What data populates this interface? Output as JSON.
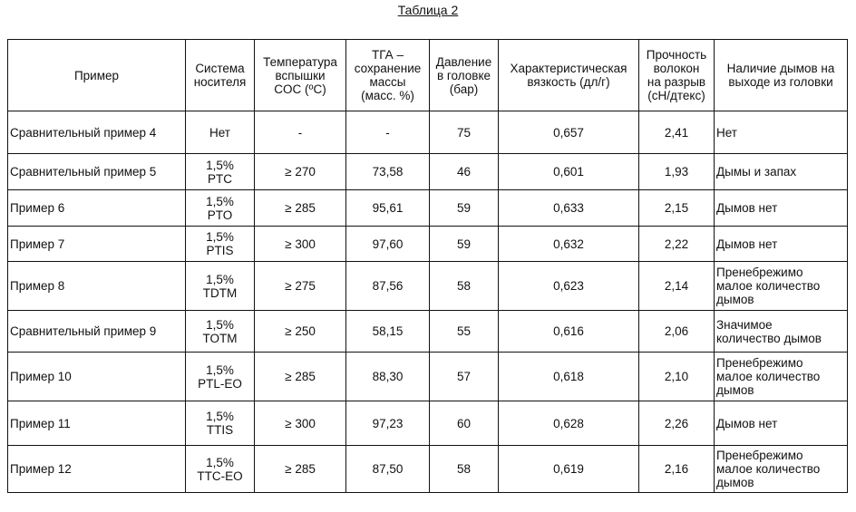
{
  "title": "Таблица 2",
  "headers": {
    "example": "Пример",
    "carrier_system": [
      "Система",
      "носителя"
    ],
    "flash_temp": [
      "Температура",
      "вспышки",
      "COC (ºC)"
    ],
    "tga": [
      "ТГА –",
      "сохранение",
      "массы",
      "(масс. %)"
    ],
    "pressure": [
      "Давление",
      "в головке",
      "(бар)"
    ],
    "viscosity": [
      "Характеристическая",
      "вязкость (дл/г)"
    ],
    "strength": [
      "Прочность",
      "волокон",
      "на разрыв",
      "(сН/дтекс)"
    ],
    "smoke": [
      "Наличие дымов на",
      "выходе из головки"
    ]
  },
  "rows": [
    {
      "example": "Сравнительный пример 4",
      "carrier": [
        "Нет"
      ],
      "flash": "-",
      "tga": "-",
      "pressure": "75",
      "viscosity": "0,657",
      "strength": "2,41",
      "smoke": [
        "Нет"
      ]
    },
    {
      "example": "Сравнительный пример 5",
      "carrier": [
        "1,5%",
        "PTC"
      ],
      "flash": "≥ 270",
      "tga": "73,58",
      "pressure": "46",
      "viscosity": "0,601",
      "strength": "1,93",
      "smoke": [
        "Дымы и запах"
      ]
    },
    {
      "example": "Пример 6",
      "carrier": [
        "1,5%",
        "PTO"
      ],
      "flash": "≥ 285",
      "tga": "95,61",
      "pressure": "59",
      "viscosity": "0,633",
      "strength": "2,15",
      "smoke": [
        "Дымов нет"
      ]
    },
    {
      "example": "Пример 7",
      "carrier": [
        "1,5%",
        "PTIS"
      ],
      "flash": "≥ 300",
      "tga": "97,60",
      "pressure": "59",
      "viscosity": "0,632",
      "strength": "2,22",
      "smoke": [
        "Дымов нет"
      ]
    },
    {
      "example": "Пример 8",
      "carrier": [
        "1,5%",
        "TDTM"
      ],
      "flash": "≥ 275",
      "tga": "87,56",
      "pressure": "58",
      "viscosity": "0,623",
      "strength": "2,14",
      "smoke": [
        "Пренебрежимо",
        "малое количество",
        "дымов"
      ]
    },
    {
      "example": "Сравнительный пример 9",
      "carrier": [
        "1,5%",
        "TOTM"
      ],
      "flash": "≥ 250",
      "tga": "58,15",
      "pressure": "55",
      "viscosity": "0,616",
      "strength": "2,06",
      "smoke": [
        "Значимое",
        "количество дымов"
      ]
    },
    {
      "example": "Пример 10",
      "carrier": [
        "1,5%",
        "PTL-EO"
      ],
      "flash": "≥ 285",
      "tga": "88,30",
      "pressure": "57",
      "viscosity": "0,618",
      "strength": "2,10",
      "smoke": [
        "Пренебрежимо",
        "малое количество",
        "дымов"
      ]
    },
    {
      "example": "Пример 11",
      "carrier": [
        "1,5%",
        "TTIS"
      ],
      "flash": "≥ 300",
      "tga": "97,23",
      "pressure": "60",
      "viscosity": "0,628",
      "strength": "2,26",
      "smoke": [
        "Дымов нет"
      ]
    },
    {
      "example": "Пример 12",
      "carrier": [
        "1,5%",
        "TTC-EO"
      ],
      "flash": "≥ 285",
      "tga": "87,50",
      "pressure": "58",
      "viscosity": "0,619",
      "strength": "2,16",
      "smoke": [
        "Пренебрежимо",
        "малое количество",
        "дымов"
      ]
    }
  ]
}
